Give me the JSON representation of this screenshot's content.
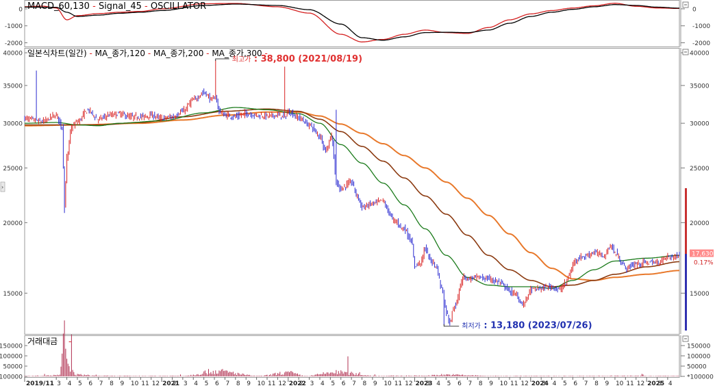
{
  "macd_panel": {
    "title_parts": [
      {
        "text": "MACD_60,130",
        "color": "#000000"
      },
      {
        "text": " - ",
        "color": "#e02020"
      },
      {
        "text": "Signal_45",
        "color": "#000000"
      },
      {
        "text": " - ",
        "color": "#e02020"
      },
      {
        "text": "OSCILLATOR",
        "color": "#000000"
      }
    ],
    "y_ticks": [
      {
        "value": 0,
        "label": "0"
      },
      {
        "value": -1000,
        "label": "-1000"
      },
      {
        "value": -2000,
        "label": "-2000"
      }
    ],
    "ylim": [
      -2100,
      400
    ]
  },
  "price_panel": {
    "title_parts": [
      {
        "text": "일본식차트(일간)",
        "color": "#000000"
      },
      {
        "text": " - ",
        "color": "#e02020"
      },
      {
        "text": "MA_종가,120",
        "color": "#000000"
      },
      {
        "text": " - ",
        "color": "#e02020"
      },
      {
        "text": "MA_종가,200",
        "color": "#000000"
      },
      {
        "text": " - ",
        "color": "#e02020"
      },
      {
        "text": "MA_종가,300",
        "color": "#000000"
      },
      {
        "text": " - ",
        "color": "#e02020"
      }
    ],
    "y_ticks": [
      {
        "value": 40000,
        "label": "40000"
      },
      {
        "value": 35000,
        "label": "35000"
      },
      {
        "value": 30000,
        "label": "30000"
      },
      {
        "value": 25000,
        "label": "25000"
      },
      {
        "value": 20000,
        "label": "20000"
      },
      {
        "value": 15000,
        "label": "15000"
      }
    ],
    "scale": "log",
    "ylim": [
      12700,
      40800
    ],
    "high_note": {
      "prefix": "최고가",
      "text": " : 38,800 (2021/08/19)",
      "value": 38800,
      "index": 163,
      "color": "#e03030"
    },
    "low_note": {
      "prefix": "최저가",
      "text": " : 13,180 (2023/07/26)",
      "value": 13180,
      "index": 358,
      "color": "#2030b0"
    },
    "last_price": {
      "label": "17,630",
      "change": "0.17%",
      "value": 17630
    }
  },
  "volume_panel": {
    "title": "거래대금",
    "y_ticks": [
      {
        "value": 150000,
        "label": "150000"
      },
      {
        "value": 100000,
        "label": "100000"
      },
      {
        "value": 50000,
        "label": "50000"
      },
      {
        "value": 0,
        "label": "*100000"
      }
    ],
    "ylim": [
      0,
      190000
    ]
  },
  "x_axis": {
    "ticks": [
      {
        "index": 0,
        "label": "2019/11",
        "major": true
      },
      {
        "index": 27,
        "label": "3"
      },
      {
        "index": 36,
        "label": "4"
      },
      {
        "index": 45,
        "label": "5"
      },
      {
        "index": 54,
        "label": "6"
      },
      {
        "index": 63,
        "label": "7"
      },
      {
        "index": 72,
        "label": "8"
      },
      {
        "index": 81,
        "label": "9"
      },
      {
        "index": 90,
        "label": "10"
      },
      {
        "index": 99,
        "label": "11"
      },
      {
        "index": 108,
        "label": "12"
      },
      {
        "index": 117,
        "label": "2021",
        "major": true
      },
      {
        "index": 126,
        "label": "2"
      },
      {
        "index": 135,
        "label": "3"
      },
      {
        "index": 144,
        "label": "4"
      },
      {
        "index": 153,
        "label": "5"
      },
      {
        "index": 162,
        "label": "6"
      },
      {
        "index": 171,
        "label": "7"
      },
      {
        "index": 180,
        "label": "8"
      },
      {
        "index": 189,
        "label": "9"
      },
      {
        "index": 198,
        "label": "10"
      },
      {
        "index": 207,
        "label": "11"
      },
      {
        "index": 216,
        "label": "12"
      },
      {
        "index": 225,
        "label": "2022",
        "major": true
      },
      {
        "index": 234,
        "label": "2"
      },
      {
        "index": 243,
        "label": "3"
      },
      {
        "index": 252,
        "label": "4"
      },
      {
        "index": 261,
        "label": "5"
      },
      {
        "index": 270,
        "label": "6"
      },
      {
        "index": 279,
        "label": "7"
      },
      {
        "index": 288,
        "label": "8"
      },
      {
        "index": 297,
        "label": "9"
      },
      {
        "index": 306,
        "label": "10"
      },
      {
        "index": 315,
        "label": "11"
      },
      {
        "index": 324,
        "label": "12"
      },
      {
        "index": 333,
        "label": "2023",
        "major": true
      },
      {
        "index": 342,
        "label": "3"
      },
      {
        "index": 351,
        "label": "4"
      },
      {
        "index": 360,
        "label": "5"
      },
      {
        "index": 369,
        "label": "6"
      },
      {
        "index": 378,
        "label": "7"
      },
      {
        "index": 387,
        "label": "8"
      },
      {
        "index": 396,
        "label": "9"
      },
      {
        "index": 405,
        "label": "10"
      },
      {
        "index": 414,
        "label": "11"
      },
      {
        "index": 423,
        "label": "12"
      },
      {
        "index": 432,
        "label": "2024",
        "major": true
      },
      {
        "index": 441,
        "label": "3"
      },
      {
        "index": 450,
        "label": "4"
      },
      {
        "index": 459,
        "label": "5"
      },
      {
        "index": 468,
        "label": "6"
      },
      {
        "index": 477,
        "label": "7"
      },
      {
        "index": 486,
        "label": "8"
      },
      {
        "index": 495,
        "label": "9"
      },
      {
        "index": 504,
        "label": "10"
      },
      {
        "index": 513,
        "label": "11"
      },
      {
        "index": 522,
        "label": "12"
      },
      {
        "index": 531,
        "label": "2025",
        "major": true
      },
      {
        "index": 540,
        "label": "3"
      },
      {
        "index": 549,
        "label": "4"
      }
    ]
  },
  "chart_data": {
    "type": "line",
    "scale": "log",
    "x_start": "2019/11",
    "x_end": "2025/04",
    "n_points": 560,
    "price_anchors": [
      [
        0,
        30600
      ],
      [
        15,
        30200
      ],
      [
        27,
        31000
      ],
      [
        32,
        29500
      ],
      [
        34,
        21200
      ],
      [
        36,
        26000
      ],
      [
        40,
        29500
      ],
      [
        45,
        30200
      ],
      [
        54,
        31600
      ],
      [
        63,
        30500
      ],
      [
        72,
        31000
      ],
      [
        81,
        31200
      ],
      [
        90,
        30800
      ],
      [
        99,
        30800
      ],
      [
        108,
        31000
      ],
      [
        117,
        30600
      ],
      [
        126,
        30800
      ],
      [
        135,
        31500
      ],
      [
        144,
        33000
      ],
      [
        153,
        34000
      ],
      [
        160,
        33000
      ],
      [
        163,
        33500
      ],
      [
        166,
        31500
      ],
      [
        171,
        31000
      ],
      [
        180,
        30800
      ],
      [
        189,
        31200
      ],
      [
        198,
        31000
      ],
      [
        207,
        30900
      ],
      [
        216,
        31000
      ],
      [
        222,
        30800
      ],
      [
        225,
        31400
      ],
      [
        234,
        30700
      ],
      [
        243,
        29800
      ],
      [
        252,
        28500
      ],
      [
        257,
        26800
      ],
      [
        262,
        28500
      ],
      [
        266,
        23500
      ],
      [
        270,
        23000
      ],
      [
        279,
        23600
      ],
      [
        284,
        22300
      ],
      [
        288,
        21300
      ],
      [
        297,
        21600
      ],
      [
        306,
        21900
      ],
      [
        310,
        21000
      ],
      [
        315,
        20200
      ],
      [
        324,
        19500
      ],
      [
        330,
        18600
      ],
      [
        333,
        16800
      ],
      [
        338,
        17000
      ],
      [
        342,
        18000
      ],
      [
        346,
        17200
      ],
      [
        351,
        16800
      ],
      [
        356,
        15300
      ],
      [
        360,
        13900
      ],
      [
        363,
        13300
      ],
      [
        366,
        14100
      ],
      [
        369,
        14400
      ],
      [
        372,
        15600
      ],
      [
        375,
        16100
      ],
      [
        378,
        15900
      ],
      [
        387,
        16000
      ],
      [
        396,
        15900
      ],
      [
        405,
        15700
      ],
      [
        410,
        15400
      ],
      [
        414,
        15100
      ],
      [
        420,
        14900
      ],
      [
        423,
        14500
      ],
      [
        426,
        14300
      ],
      [
        429,
        14800
      ],
      [
        432,
        15200
      ],
      [
        441,
        15300
      ],
      [
        450,
        15400
      ],
      [
        456,
        15200
      ],
      [
        462,
        15600
      ],
      [
        465,
        16200
      ],
      [
        470,
        17200
      ],
      [
        477,
        17400
      ],
      [
        486,
        17700
      ],
      [
        495,
        17500
      ],
      [
        500,
        18200
      ],
      [
        504,
        17700
      ],
      [
        510,
        17000
      ],
      [
        513,
        16600
      ],
      [
        522,
        16900
      ],
      [
        531,
        17000
      ],
      [
        540,
        17000
      ],
      [
        549,
        17400
      ],
      [
        555,
        17400
      ],
      [
        559,
        17630
      ]
    ],
    "ma_series": [
      {
        "label": "MA_종가,120",
        "period": 120,
        "color": "#1a7a1a",
        "anchors": [
          [
            0,
            30000
          ],
          [
            27,
            30100
          ],
          [
            45,
            29800
          ],
          [
            63,
            29700
          ],
          [
            81,
            30000
          ],
          [
            117,
            30300
          ],
          [
            153,
            31300
          ],
          [
            180,
            32000
          ],
          [
            207,
            31700
          ],
          [
            234,
            31200
          ],
          [
            252,
            30000
          ],
          [
            270,
            27500
          ],
          [
            288,
            25500
          ],
          [
            306,
            23500
          ],
          [
            324,
            21500
          ],
          [
            342,
            19500
          ],
          [
            360,
            17500
          ],
          [
            378,
            16000
          ],
          [
            396,
            15500
          ],
          [
            414,
            15400
          ],
          [
            432,
            15400
          ],
          [
            450,
            15300
          ],
          [
            468,
            15800
          ],
          [
            486,
            16500
          ],
          [
            504,
            17100
          ],
          [
            531,
            17300
          ],
          [
            559,
            17500
          ]
        ]
      },
      {
        "label": "MA_종가,200",
        "period": 200,
        "color": "#8b3a10",
        "anchors": [
          [
            0,
            29800
          ],
          [
            27,
            29800
          ],
          [
            63,
            29800
          ],
          [
            99,
            30100
          ],
          [
            135,
            30800
          ],
          [
            171,
            31500
          ],
          [
            207,
            31800
          ],
          [
            234,
            31500
          ],
          [
            252,
            30500
          ],
          [
            270,
            29000
          ],
          [
            288,
            27300
          ],
          [
            306,
            25700
          ],
          [
            324,
            24000
          ],
          [
            342,
            22300
          ],
          [
            360,
            20700
          ],
          [
            378,
            19000
          ],
          [
            396,
            17500
          ],
          [
            414,
            16500
          ],
          [
            432,
            15800
          ],
          [
            450,
            15400
          ],
          [
            468,
            15500
          ],
          [
            486,
            15800
          ],
          [
            504,
            16200
          ],
          [
            531,
            16700
          ],
          [
            559,
            17050
          ]
        ]
      },
      {
        "label": "MA_종가,300",
        "period": 300,
        "color": "#e8782a",
        "anchors": [
          [
            0,
            29700
          ],
          [
            45,
            29800
          ],
          [
            99,
            30000
          ],
          [
            135,
            30400
          ],
          [
            171,
            31000
          ],
          [
            207,
            31400
          ],
          [
            234,
            31400
          ],
          [
            252,
            30900
          ],
          [
            270,
            29900
          ],
          [
            288,
            28800
          ],
          [
            306,
            27600
          ],
          [
            324,
            26300
          ],
          [
            342,
            25000
          ],
          [
            360,
            23600
          ],
          [
            378,
            22100
          ],
          [
            396,
            20600
          ],
          [
            414,
            19100
          ],
          [
            432,
            17700
          ],
          [
            450,
            16600
          ],
          [
            468,
            15900
          ],
          [
            486,
            15800
          ],
          [
            504,
            16000
          ],
          [
            531,
            16200
          ],
          [
            559,
            16450
          ]
        ]
      }
    ],
    "macd": {
      "macd_anchors": [
        [
          0,
          120
        ],
        [
          15,
          160
        ],
        [
          27,
          50
        ],
        [
          36,
          -650
        ],
        [
          45,
          -400
        ],
        [
          63,
          -280
        ],
        [
          81,
          -200
        ],
        [
          99,
          -150
        ],
        [
          117,
          0
        ],
        [
          153,
          300
        ],
        [
          180,
          320
        ],
        [
          216,
          120
        ],
        [
          243,
          -250
        ],
        [
          270,
          -1500
        ],
        [
          288,
          -1950
        ],
        [
          306,
          -1800
        ],
        [
          324,
          -1500
        ],
        [
          342,
          -1250
        ],
        [
          360,
          -1400
        ],
        [
          378,
          -1450
        ],
        [
          396,
          -1100
        ],
        [
          414,
          -650
        ],
        [
          432,
          -300
        ],
        [
          450,
          -100
        ],
        [
          468,
          50
        ],
        [
          486,
          180
        ],
        [
          504,
          330
        ],
        [
          522,
          150
        ],
        [
          540,
          50
        ],
        [
          559,
          20
        ]
      ],
      "signal_anchors": [
        [
          0,
          100
        ],
        [
          27,
          90
        ],
        [
          36,
          -200
        ],
        [
          45,
          -450
        ],
        [
          63,
          -370
        ],
        [
          81,
          -260
        ],
        [
          99,
          -200
        ],
        [
          117,
          -100
        ],
        [
          153,
          200
        ],
        [
          180,
          280
        ],
        [
          216,
          200
        ],
        [
          243,
          -50
        ],
        [
          270,
          -900
        ],
        [
          288,
          -1700
        ],
        [
          306,
          -1850
        ],
        [
          324,
          -1650
        ],
        [
          342,
          -1400
        ],
        [
          360,
          -1380
        ],
        [
          378,
          -1400
        ],
        [
          396,
          -1250
        ],
        [
          414,
          -850
        ],
        [
          432,
          -450
        ],
        [
          450,
          -200
        ],
        [
          468,
          -30
        ],
        [
          486,
          120
        ],
        [
          504,
          250
        ],
        [
          522,
          200
        ],
        [
          540,
          100
        ],
        [
          559,
          40
        ]
      ],
      "macd_color": "#d42020",
      "signal_color": "#000000"
    },
    "volume_anchors": [
      [
        0,
        1500
      ],
      [
        20,
        4000
      ],
      [
        30,
        6000
      ],
      [
        34,
        180000
      ],
      [
        36,
        90000
      ],
      [
        38,
        40000
      ],
      [
        45,
        8000
      ],
      [
        63,
        2500
      ],
      [
        99,
        2000
      ],
      [
        135,
        2500
      ],
      [
        163,
        25000
      ],
      [
        200,
        2000
      ],
      [
        225,
        18000
      ],
      [
        240,
        2000
      ],
      [
        266,
        20000
      ],
      [
        300,
        2500
      ],
      [
        340,
        3000
      ],
      [
        358,
        8000
      ],
      [
        400,
        2000
      ],
      [
        450,
        2000
      ],
      [
        500,
        2500
      ],
      [
        559,
        2000
      ]
    ]
  }
}
